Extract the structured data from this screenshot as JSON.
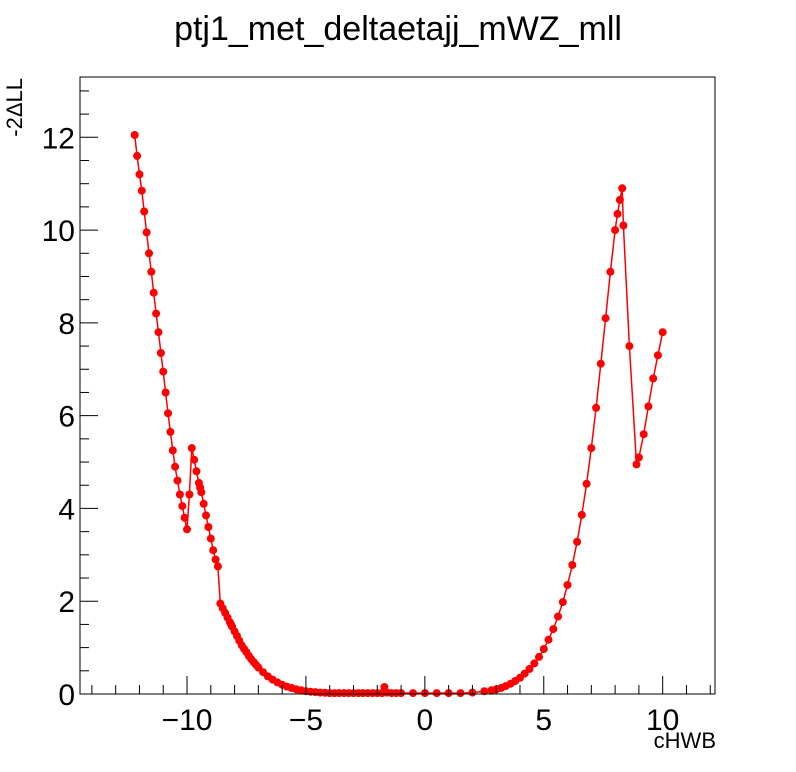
{
  "chart_data": {
    "type": "line",
    "title": "ptj1_met_deltaetajj_mWZ_mll",
    "xlabel": "cHWB",
    "ylabel": "-2ΔLL",
    "xlim": [
      -14.5,
      12.2
    ],
    "ylim": [
      0,
      13.3
    ],
    "x_ticks": [
      -10,
      -5,
      0,
      5,
      10
    ],
    "x_tick_labels": [
      "−10",
      "−5",
      "0",
      "5",
      "10"
    ],
    "y_ticks": [
      0,
      2,
      4,
      6,
      8,
      10,
      12
    ],
    "y_tick_labels": [
      "0",
      "2",
      "4",
      "6",
      "8",
      "10",
      "12"
    ],
    "grid": false,
    "series": [
      {
        "color": "#ff0000",
        "x": [
          -12.2,
          -12.1,
          -12.0,
          -11.9,
          -11.8,
          -11.7,
          -11.6,
          -11.5,
          -11.4,
          -11.3,
          -11.2,
          -11.1,
          -11.0,
          -10.9,
          -10.8,
          -10.7,
          -10.6,
          -10.5,
          -10.4,
          -10.3,
          -10.2,
          -10.1,
          -10.0,
          -9.9,
          -9.8,
          -9.7,
          -9.6,
          -9.5,
          -9.45,
          -9.4,
          -9.3,
          -9.2,
          -9.1,
          -9.0,
          -8.9,
          -8.8,
          -8.7,
          -8.6,
          -8.5,
          -8.4,
          -8.3,
          -8.2,
          -8.15,
          -8.1,
          -8.0,
          -7.9,
          -7.8,
          -7.7,
          -7.6,
          -7.5,
          -7.4,
          -7.3,
          -7.2,
          -7.1,
          -7.0,
          -6.8,
          -6.6,
          -6.4,
          -6.2,
          -6.0,
          -5.8,
          -5.6,
          -5.4,
          -5.2,
          -5.0,
          -4.8,
          -4.6,
          -4.4,
          -4.2,
          -4.0,
          -3.8,
          -3.6,
          -3.4,
          -3.2,
          -3.0,
          -2.8,
          -2.6,
          -2.4,
          -2.2,
          -2.0,
          -1.8,
          -1.7,
          -1.6,
          -1.4,
          -1.2,
          -1.0,
          -0.5,
          0.0,
          0.5,
          1.0,
          1.5,
          2.0,
          2.5,
          2.8,
          3.0,
          3.2,
          3.4,
          3.6,
          3.8,
          4.0,
          4.2,
          4.4,
          4.6,
          4.8,
          5.0,
          5.2,
          5.4,
          5.6,
          5.8,
          6.0,
          6.2,
          6.4,
          6.6,
          6.8,
          7.0,
          7.2,
          7.4,
          7.6,
          7.8,
          8.0,
          8.1,
          8.2,
          8.3,
          8.35,
          8.6,
          8.9,
          9.0,
          9.2,
          9.4,
          9.6,
          9.8,
          10.0
        ],
        "y": [
          12.05,
          11.6,
          11.2,
          10.85,
          10.4,
          9.95,
          9.5,
          9.1,
          8.65,
          8.2,
          7.8,
          7.35,
          6.95,
          6.5,
          6.05,
          5.65,
          5.25,
          4.9,
          4.6,
          4.3,
          4.05,
          3.8,
          3.55,
          4.3,
          5.3,
          5.05,
          4.8,
          4.55,
          4.45,
          4.35,
          4.1,
          3.85,
          3.6,
          3.35,
          3.1,
          2.9,
          2.75,
          1.95,
          1.85,
          1.75,
          1.65,
          1.55,
          1.5,
          1.45,
          1.35,
          1.25,
          1.15,
          1.05,
          0.97,
          0.9,
          0.82,
          0.75,
          0.69,
          0.63,
          0.57,
          0.47,
          0.38,
          0.31,
          0.25,
          0.2,
          0.16,
          0.13,
          0.1,
          0.08,
          0.06,
          0.05,
          0.04,
          0.03,
          0.025,
          0.02,
          0.02,
          0.02,
          0.02,
          0.02,
          0.02,
          0.02,
          0.02,
          0.02,
          0.02,
          0.02,
          0.02,
          0.15,
          0.03,
          0.02,
          0.02,
          0.02,
          0.02,
          0.02,
          0.02,
          0.02,
          0.02,
          0.03,
          0.06,
          0.08,
          0.1,
          0.13,
          0.17,
          0.22,
          0.28,
          0.35,
          0.44,
          0.54,
          0.66,
          0.8,
          0.97,
          1.17,
          1.4,
          1.67,
          1.98,
          2.35,
          2.78,
          3.28,
          3.86,
          4.53,
          5.3,
          6.17,
          7.12,
          8.1,
          9.1,
          10.0,
          10.35,
          10.65,
          10.9,
          10.1,
          7.5,
          4.95,
          5.1,
          5.6,
          6.2,
          6.8,
          7.3,
          7.8
        ]
      }
    ]
  }
}
